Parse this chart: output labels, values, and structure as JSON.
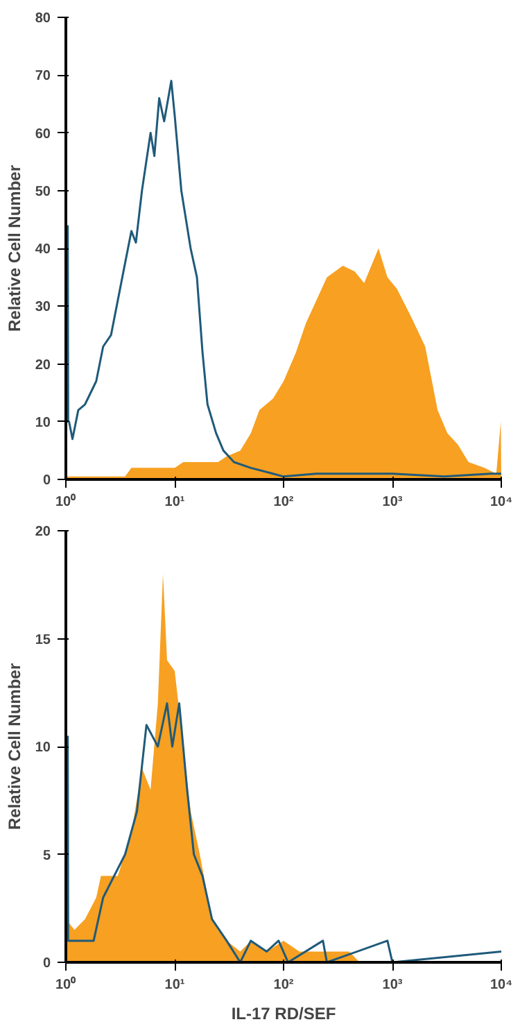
{
  "chart_data": [
    {
      "type": "area",
      "ylabel": "Relative Cell Number",
      "log": "x",
      "grid": false,
      "xlim": [
        1,
        10000
      ],
      "ylim": [
        0,
        80
      ],
      "xticks": [
        {
          "value": 1,
          "label": "10⁰"
        },
        {
          "value": 10,
          "label": "10¹"
        },
        {
          "value": 100,
          "label": "10²"
        },
        {
          "value": 1000,
          "label": "10³"
        },
        {
          "value": 10000,
          "label": "10⁴"
        }
      ],
      "yticks": [
        0,
        10,
        20,
        30,
        40,
        50,
        60,
        70,
        80
      ],
      "series": [
        {
          "color": "#f7a021",
          "x": [
            1,
            3.5,
            4,
            10,
            12,
            25,
            30,
            40,
            50,
            60,
            80,
            100,
            130,
            160,
            200,
            250,
            350,
            450,
            550,
            745,
            900,
            1100,
            1500,
            2000,
            2600,
            3200,
            4000,
            5000,
            7000,
            9000,
            9900,
            10000
          ],
          "values": [
            0.5,
            0.5,
            2,
            2,
            3,
            3,
            4,
            5,
            8,
            12,
            14,
            17,
            22,
            27,
            31,
            35,
            37,
            36,
            34,
            40,
            35,
            33,
            28,
            23,
            12,
            8,
            6,
            3,
            2,
            1,
            10,
            0
          ]
        },
        {
          "type": "line",
          "color": "#1f5a7a",
          "x": [
            1.04,
            1.05,
            1.07,
            1.15,
            1.3,
            1.5,
            1.9,
            2.2,
            2.6,
            3.3,
            4.0,
            4.4,
            5.0,
            6.0,
            6.5,
            7.2,
            8,
            9.3,
            10,
            11.5,
            14,
            16,
            18,
            20,
            24,
            28,
            35,
            50,
            80,
            100,
            200,
            500,
            1000,
            3000,
            8000,
            10000
          ],
          "values": [
            44,
            10,
            10,
            7,
            12,
            13,
            17,
            23,
            25,
            35,
            43,
            41,
            50,
            60,
            56,
            66,
            62,
            69,
            63,
            50,
            40,
            35,
            22,
            13,
            8,
            5,
            3,
            2,
            1,
            0.5,
            1,
            1,
            1,
            0.5,
            1,
            1
          ]
        }
      ]
    },
    {
      "type": "area",
      "xlabel": "IL-17 RD/SEF",
      "ylabel": "Relative Cell Number",
      "log": "x",
      "grid": false,
      "xlim": [
        1,
        10000
      ],
      "ylim": [
        0,
        20
      ],
      "xticks": [
        {
          "value": 1,
          "label": "10⁰"
        },
        {
          "value": 10,
          "label": "10¹"
        },
        {
          "value": 100,
          "label": "10²"
        },
        {
          "value": 1000,
          "label": "10³"
        },
        {
          "value": 10000,
          "label": "10⁴"
        }
      ],
      "yticks": [
        0,
        5,
        10,
        15,
        20
      ],
      "series": [
        {
          "color": "#f7a021",
          "x": [
            1,
            1.2,
            1.5,
            1.9,
            2.1,
            3,
            4,
            5,
            6,
            7,
            7.8,
            8.5,
            10,
            12,
            14,
            17,
            22,
            25,
            30,
            40,
            50,
            70,
            100,
            140,
            200,
            400,
            500,
            10000
          ],
          "values": [
            2,
            1.5,
            2,
            3,
            4,
            4,
            6,
            9,
            8,
            12,
            18,
            14,
            13.5,
            10,
            7,
            5,
            2,
            1.5,
            1,
            0.5,
            1,
            0.5,
            1,
            0.5,
            0.5,
            0.5,
            0,
            0
          ]
        },
        {
          "type": "line",
          "color": "#1f5a7a",
          "x": [
            1.04,
            1.05,
            1.07,
            1.8,
            2.2,
            3.5,
            4.5,
            5.5,
            7,
            8.5,
            9.5,
            11,
            13,
            15,
            18,
            22,
            30,
            40,
            50,
            70,
            90,
            110,
            230,
            250,
            900,
            1000,
            10000
          ],
          "values": [
            10.5,
            1,
            1,
            1,
            3,
            5,
            7,
            11,
            10,
            12,
            10,
            12,
            8,
            5,
            4,
            2,
            1,
            0,
            1,
            0.5,
            1,
            0,
            1,
            0,
            1,
            0,
            0.5
          ]
        }
      ]
    }
  ]
}
